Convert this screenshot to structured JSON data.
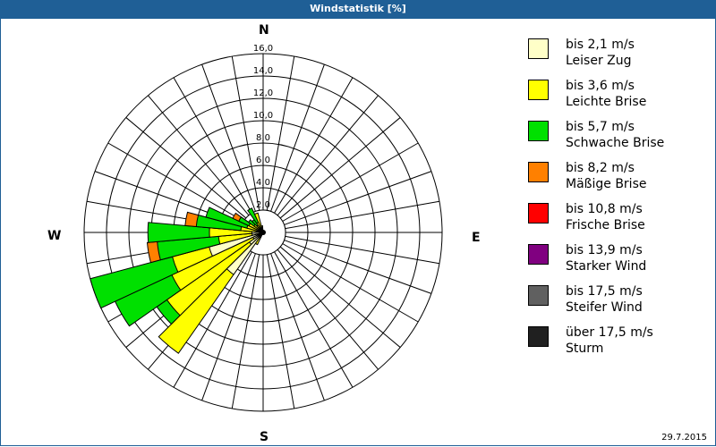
{
  "window": {
    "title": "Windstatistik [%]"
  },
  "compass": {
    "n": "N",
    "e": "E",
    "s": "S",
    "w": "W"
  },
  "footer": {
    "date": "29.7.2015"
  },
  "legend": [
    {
      "range": "bis 2,1 m/s",
      "name": "Leiser Zug",
      "color": "#ffffc8"
    },
    {
      "range": "bis 3,6 m/s",
      "name": "Leichte Brise",
      "color": "#ffff00"
    },
    {
      "range": "bis 5,7 m/s",
      "name": "Schwache Brise",
      "color": "#00e000"
    },
    {
      "range": "bis 8,2 m/s",
      "name": "Mäßige Brise",
      "color": "#ff8000"
    },
    {
      "range": "bis 10,8 m/s",
      "name": "Frische Brise",
      "color": "#ff0000"
    },
    {
      "range": "bis 13,9 m/s",
      "name": "Starker Wind",
      "color": "#800080"
    },
    {
      "range": "bis 17,5 m/s",
      "name": "Steifer Wind",
      "color": "#606060"
    },
    {
      "range": "über 17,5 m/s",
      "name": "Sturm",
      "color": "#202020"
    }
  ],
  "chart_data": {
    "type": "polar-stacked-bar (wind rose)",
    "title": "Windstatistik [%]",
    "radial_unit": "%",
    "radial_ticks": [
      "2,0",
      "4,0",
      "6,0",
      "8,0",
      "10,0",
      "12,0",
      "14,0",
      "16,0"
    ],
    "radial_max": 16,
    "sector_width_deg": 10,
    "compass_labels": [
      "N",
      "E",
      "S",
      "W"
    ],
    "series_names": [
      "bis 2,1 m/s",
      "bis 3,6 m/s",
      "bis 5,7 m/s",
      "bis 8,2 m/s",
      "bis 10,8 m/s",
      "bis 13,9 m/s",
      "bis 17,5 m/s",
      "über 17,5 m/s"
    ],
    "note": "values are cumulative percentages per sector for classes [Leiser Zug, Leichte Brise, Schwache Brise, Mäßige Brise]; higher classes are 0",
    "sectors": [
      {
        "dir": 210,
        "cumulative": [
          0.5,
          1.2,
          1.2,
          1.2
        ]
      },
      {
        "dir": 220,
        "cumulative": [
          4.6,
          13.2,
          13.2,
          13.2
        ]
      },
      {
        "dir": 230,
        "cumulative": [
          1.5,
          10.5,
          11.6,
          11.6
        ]
      },
      {
        "dir": 240,
        "cumulative": [
          1.0,
          9.0,
          14.6,
          14.6
        ]
      },
      {
        "dir": 250,
        "cumulative": [
          5.0,
          8.4,
          16.0,
          16.0
        ]
      },
      {
        "dir": 260,
        "cumulative": [
          1.0,
          4.0,
          9.5,
          10.4
        ]
      },
      {
        "dir": 270,
        "cumulative": [
          1.0,
          4.8,
          10.3,
          10.3
        ]
      },
      {
        "dir": 280,
        "cumulative": [
          0.6,
          2.0,
          6.0,
          7.0
        ]
      },
      {
        "dir": 290,
        "cumulative": [
          0.5,
          1.5,
          5.3,
          5.3
        ]
      },
      {
        "dir": 300,
        "cumulative": [
          0.4,
          1.4,
          2.4,
          3.0
        ]
      },
      {
        "dir": 310,
        "cumulative": [
          0.3,
          1.0,
          1.6,
          1.6
        ]
      },
      {
        "dir": 320,
        "cumulative": [
          0.3,
          0.8,
          1.4,
          1.4
        ]
      },
      {
        "dir": 330,
        "cumulative": [
          0.3,
          1.0,
          2.4,
          2.4
        ]
      },
      {
        "dir": 340,
        "cumulative": [
          0.3,
          1.8,
          1.8,
          1.8
        ]
      },
      {
        "dir": 350,
        "cumulative": [
          0.2,
          0.6,
          0.6,
          0.6
        ]
      }
    ]
  }
}
